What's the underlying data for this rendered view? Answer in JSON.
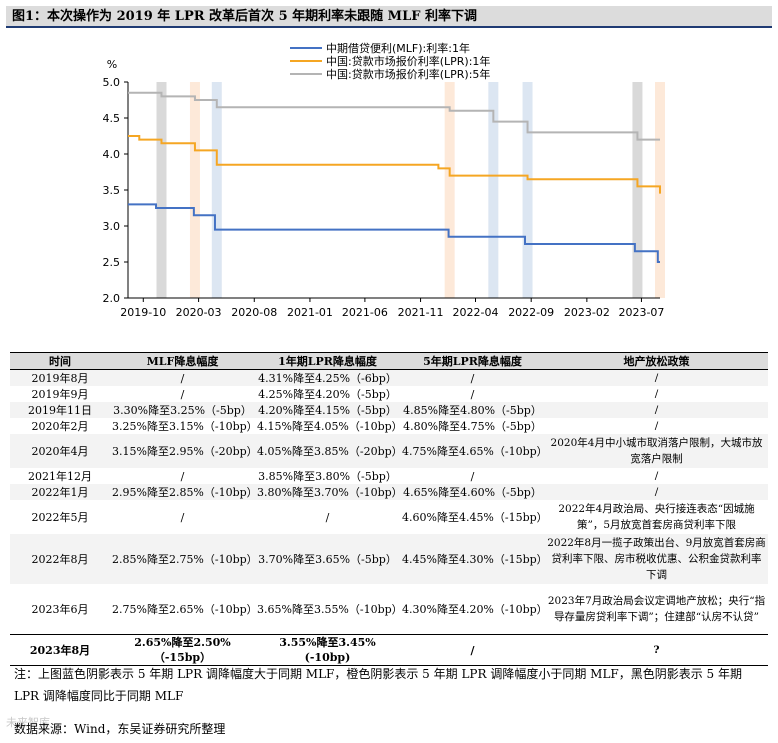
{
  "figure_title": "图1：本次操作为 2019 年 LPR 改革后首次 5 年期利率未跟随 MLF 利率下调",
  "chart_data": {
    "type": "line",
    "y_unit": "%",
    "ylim": [
      2.0,
      5.0
    ],
    "yticks": [
      "2.0",
      "2.5",
      "3.0",
      "3.5",
      "4.0",
      "4.5",
      "5.0"
    ],
    "xlim": [
      "2019-08-20",
      "2023-08-21"
    ],
    "xticks": [
      "2019-10",
      "2020-03",
      "2020-08",
      "2021-01",
      "2021-06",
      "2021-11",
      "2022-04",
      "2022-09",
      "2023-02",
      "2023-07"
    ],
    "legend_position": "top-center",
    "series": [
      {
        "name": "中期借贷便利(MLF):利率:1年",
        "color": "#4472c4",
        "x": [
          "2019-08-20",
          "2019-11-05",
          "2020-02-17",
          "2020-04-15",
          "2022-01-17",
          "2022-08-15",
          "2023-06-13",
          "2023-08-15",
          "2023-08-21"
        ],
        "y": [
          3.3,
          3.25,
          3.15,
          2.95,
          2.85,
          2.75,
          2.65,
          2.5,
          2.5
        ]
      },
      {
        "name": "中国:贷款市场报价利率(LPR):1年",
        "color": "#f5a623",
        "x": [
          "2019-08-20",
          "2019-09-20",
          "2019-11-20",
          "2020-02-20",
          "2020-04-20",
          "2021-12-20",
          "2022-01-20",
          "2022-08-22",
          "2023-06-20",
          "2023-08-21"
        ],
        "y": [
          4.25,
          4.2,
          4.15,
          4.05,
          3.85,
          3.8,
          3.7,
          3.65,
          3.55,
          3.45
        ]
      },
      {
        "name": "中国:贷款市场报价利率(LPR):5年",
        "color": "#b4b4b4",
        "x": [
          "2019-08-20",
          "2019-11-20",
          "2020-02-20",
          "2020-04-20",
          "2022-01-20",
          "2022-05-20",
          "2022-08-22",
          "2023-06-20",
          "2023-08-21"
        ],
        "y": [
          4.85,
          4.8,
          4.75,
          4.65,
          4.6,
          4.45,
          4.3,
          4.2,
          4.2
        ]
      }
    ],
    "shading": [
      {
        "date": "2019-11-20",
        "kind": "black"
      },
      {
        "date": "2020-02-20",
        "kind": "orange"
      },
      {
        "date": "2020-04-20",
        "kind": "blue"
      },
      {
        "date": "2022-01-20",
        "kind": "orange"
      },
      {
        "date": "2022-05-20",
        "kind": "blue"
      },
      {
        "date": "2022-08-22",
        "kind": "blue"
      },
      {
        "date": "2023-06-20",
        "kind": "black"
      },
      {
        "date": "2023-08-21",
        "kind": "orange"
      }
    ],
    "shade_colors": {
      "black": "#d9d9d9",
      "orange": "#fde9d9",
      "blue": "#dce6f2"
    }
  },
  "table": {
    "headers": [
      "时间",
      "MLF降息幅度",
      "1年期LPR降息幅度",
      "5年期LPR降息幅度",
      "地产放松政策"
    ],
    "rows": [
      [
        "2019年8月",
        "/",
        "4.31%降至4.25%（-6bp）",
        "/",
        "/"
      ],
      [
        "2019年9月",
        "/",
        "4.25%降至4.20%（-5bp）",
        "/",
        "/"
      ],
      [
        "2019年11日",
        "3.30%降至3.25%（-5bp）",
        "4.20%降至4.15%（-5bp）",
        "4.85%降至4.80%（-5bp）",
        "/"
      ],
      [
        "2020年2月",
        "3.25%降至3.15%（-10bp）",
        "4.15%降至4.05%（-10bp）",
        "4.80%降至4.75%（-5bp）",
        "/"
      ],
      [
        "2020年4月",
        "3.15%降至2.95%（-20bp）",
        "4.05%降至3.85%（-20bp）",
        "4.75%降至4.65%（-10bp）",
        "2020年4月中小城市取消落户限制，大城市放宽落户限制"
      ],
      [
        "2021年12月",
        "/",
        "3.85%降至3.80%（-5bp）",
        "/",
        "/"
      ],
      [
        "2022年1月",
        "2.95%降至2.85%（-10bp）",
        "3.80%降至3.70%（-10bp）",
        "4.65%降至4.60%（-5bp）",
        "/"
      ],
      [
        "2022年5月",
        "/",
        "/",
        "4.60%降至4.45%（-15bp）",
        "2022年4月政治局、央行接连表态“因城施策”，5月放宽首套房商贷利率下限"
      ],
      [
        "2022年8月",
        "2.85%降至2.75%（-10bp）",
        "3.70%降至3.65%（-5bp）",
        "4.45%降至4.30%（-15bp）",
        "2022年8月一揽子政策出台、9月放宽首套房商贷利率下限、房市税收优惠、公积金贷款利率下调"
      ],
      [
        "2023年6月",
        "2.75%降至2.65%（-10bp）",
        "3.65%降至3.55%（-10bp）",
        "4.30%降至4.20%（-10bp）",
        "2023年7月政治局会议定调地产放松；央行“指导存量房贷利率下调”；住建部“认房不认贷”"
      ],
      [
        "2023年8月",
        "2.65%降至2.50%（-15bp）",
        "3.55%降至3.45%(-10bp)",
        "/",
        "?"
      ]
    ]
  },
  "note": "注：上图蓝色阴影表示 5 年期 LPR 调降幅度大于同期 MLF，橙色阴影表示 5 年期 LPR 调降幅度小于同期 MLF，黑色阴影表示 5 年期 LPR 调降幅度同比于同期 MLF",
  "source": "数据来源：Wind，东吴证券研究所整理",
  "watermark": "未来智库"
}
